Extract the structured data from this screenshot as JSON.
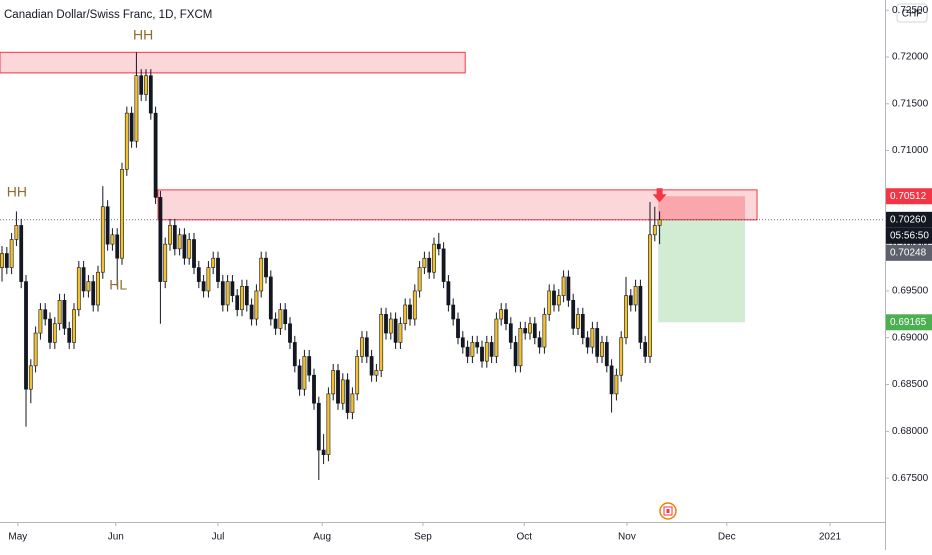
{
  "chart_data": {
    "type": "candlestick",
    "title": "Canadian Dollar/Swiss Franc, 1D, FXCM",
    "currency_button": "CHF",
    "up_color": "#f2c12e",
    "down_color": "#131722",
    "wick_color": "#131722",
    "xlim": [
      -0.42,
      183.96
    ],
    "ylim": [
      0.67031,
      0.72609
    ],
    "yticks": [
      {
        "value": 0.675,
        "label": "0.67500"
      },
      {
        "value": 0.68,
        "label": "0.68000"
      },
      {
        "value": 0.685,
        "label": "0.68500"
      },
      {
        "value": 0.69,
        "label": "0.69000"
      },
      {
        "value": 0.695,
        "label": "0.69500"
      },
      {
        "value": 0.7,
        "label": "0.70000"
      },
      {
        "value": 0.705,
        "label": "0.70500"
      },
      {
        "value": 0.71,
        "label": "0.71000"
      },
      {
        "value": 0.715,
        "label": "0.71500"
      },
      {
        "value": 0.72,
        "label": "0.72000"
      },
      {
        "value": 0.725,
        "label": "0.72500"
      }
    ],
    "xticks": [
      {
        "value": 3.3,
        "label": "May"
      },
      {
        "value": 23.7,
        "label": "Jun"
      },
      {
        "value": 45,
        "label": "Jul"
      },
      {
        "value": 66.7,
        "label": "Aug"
      },
      {
        "value": 87.7,
        "label": "Sep"
      },
      {
        "value": 108.8,
        "label": "Oct"
      },
      {
        "value": 130.2,
        "label": "Nov"
      },
      {
        "value": 151,
        "label": "Dec"
      },
      {
        "value": 172.5,
        "label": "2021"
      }
    ],
    "ohlc": [
      [
        0.6975,
        0.6998,
        0.696,
        0.699
      ],
      [
        0.699,
        0.6997,
        0.6968,
        0.6975
      ],
      [
        0.6975,
        0.7012,
        0.6968,
        0.7005
      ],
      [
        0.7005,
        0.7035,
        0.6998,
        0.702
      ],
      [
        0.702,
        0.7027,
        0.6953,
        0.696
      ],
      [
        0.696,
        0.6967,
        0.6805,
        0.6845
      ],
      [
        0.6845,
        0.6877,
        0.683,
        0.687
      ],
      [
        0.687,
        0.6912,
        0.6863,
        0.6905
      ],
      [
        0.6905,
        0.6937,
        0.6898,
        0.693
      ],
      [
        0.693,
        0.6937,
        0.6913,
        0.692
      ],
      [
        0.692,
        0.6927,
        0.6888,
        0.6895
      ],
      [
        0.6895,
        0.6922,
        0.6888,
        0.6915
      ],
      [
        0.6915,
        0.6947,
        0.6908,
        0.694
      ],
      [
        0.694,
        0.6947,
        0.6903,
        0.691
      ],
      [
        0.691,
        0.6917,
        0.6888,
        0.6895
      ],
      [
        0.6895,
        0.6937,
        0.6888,
        0.693
      ],
      [
        0.693,
        0.6982,
        0.6923,
        0.6975
      ],
      [
        0.6975,
        0.6982,
        0.6943,
        0.695
      ],
      [
        0.695,
        0.6967,
        0.6943,
        0.696
      ],
      [
        0.696,
        0.6967,
        0.6928,
        0.6935
      ],
      [
        0.6935,
        0.6977,
        0.6928,
        0.697
      ],
      [
        0.697,
        0.7062,
        0.6963,
        0.704
      ],
      [
        0.704,
        0.7047,
        0.6993,
        0.7
      ],
      [
        0.7,
        0.7017,
        0.6993,
        0.701
      ],
      [
        0.701,
        0.7017,
        0.6955,
        0.6985
      ],
      [
        0.6985,
        0.7087,
        0.6978,
        0.708
      ],
      [
        0.708,
        0.7147,
        0.7073,
        0.714
      ],
      [
        0.714,
        0.7147,
        0.7103,
        0.711
      ],
      [
        0.711,
        0.7205,
        0.7103,
        0.718
      ],
      [
        0.718,
        0.7187,
        0.7153,
        0.716
      ],
      [
        0.716,
        0.7187,
        0.7153,
        0.718
      ],
      [
        0.718,
        0.7187,
        0.7133,
        0.714
      ],
      [
        0.714,
        0.7147,
        0.7043,
        0.705
      ],
      [
        0.705,
        0.7057,
        0.6915,
        0.696
      ],
      [
        0.696,
        0.7007,
        0.6953,
        0.7
      ],
      [
        0.7,
        0.7027,
        0.6993,
        0.702
      ],
      [
        0.702,
        0.7027,
        0.6988,
        0.6995
      ],
      [
        0.6995,
        0.7017,
        0.6988,
        0.701
      ],
      [
        0.701,
        0.7017,
        0.6978,
        0.6985
      ],
      [
        0.6985,
        0.7012,
        0.6978,
        0.7005
      ],
      [
        0.7005,
        0.7012,
        0.6968,
        0.6975
      ],
      [
        0.6975,
        0.6982,
        0.6953,
        0.696
      ],
      [
        0.696,
        0.6967,
        0.6943,
        0.695
      ],
      [
        0.695,
        0.6982,
        0.6943,
        0.6975
      ],
      [
        0.6975,
        0.6992,
        0.6968,
        0.6985
      ],
      [
        0.6985,
        0.6992,
        0.6953,
        0.696
      ],
      [
        0.696,
        0.6967,
        0.6928,
        0.6935
      ],
      [
        0.6935,
        0.6967,
        0.6928,
        0.696
      ],
      [
        0.696,
        0.6967,
        0.6938,
        0.6945
      ],
      [
        0.6945,
        0.6952,
        0.6923,
        0.693
      ],
      [
        0.693,
        0.6962,
        0.6923,
        0.6955
      ],
      [
        0.6955,
        0.6962,
        0.6928,
        0.6935
      ],
      [
        0.6935,
        0.6942,
        0.6913,
        0.692
      ],
      [
        0.692,
        0.6957,
        0.6913,
        0.695
      ],
      [
        0.695,
        0.6992,
        0.6943,
        0.6985
      ],
      [
        0.6985,
        0.6992,
        0.6958,
        0.6965
      ],
      [
        0.6965,
        0.6972,
        0.6913,
        0.692
      ],
      [
        0.692,
        0.6927,
        0.6903,
        0.691
      ],
      [
        0.691,
        0.6937,
        0.6903,
        0.693
      ],
      [
        0.693,
        0.6937,
        0.6908,
        0.6915
      ],
      [
        0.6915,
        0.6922,
        0.6888,
        0.6895
      ],
      [
        0.6895,
        0.6902,
        0.6863,
        0.687
      ],
      [
        0.687,
        0.6877,
        0.6838,
        0.6845
      ],
      [
        0.6845,
        0.6887,
        0.6838,
        0.688
      ],
      [
        0.688,
        0.6887,
        0.6853,
        0.686
      ],
      [
        0.686,
        0.6867,
        0.6823,
        0.683
      ],
      [
        0.683,
        0.6837,
        0.6748,
        0.678
      ],
      [
        0.678,
        0.6797,
        0.6765,
        0.6775
      ],
      [
        0.6775,
        0.6847,
        0.6768,
        0.684
      ],
      [
        0.684,
        0.6872,
        0.6833,
        0.6865
      ],
      [
        0.6865,
        0.6872,
        0.6823,
        0.683
      ],
      [
        0.683,
        0.6862,
        0.6823,
        0.6855
      ],
      [
        0.6855,
        0.6862,
        0.6813,
        0.682
      ],
      [
        0.682,
        0.6847,
        0.6813,
        0.684
      ],
      [
        0.684,
        0.6887,
        0.6833,
        0.688
      ],
      [
        0.688,
        0.6907,
        0.6873,
        0.69
      ],
      [
        0.69,
        0.6907,
        0.6873,
        0.688
      ],
      [
        0.688,
        0.6887,
        0.6853,
        0.686
      ],
      [
        0.686,
        0.6872,
        0.6853,
        0.6865
      ],
      [
        0.6865,
        0.6932,
        0.6858,
        0.6925
      ],
      [
        0.6925,
        0.6932,
        0.6898,
        0.6905
      ],
      [
        0.6905,
        0.6927,
        0.6898,
        0.692
      ],
      [
        0.692,
        0.6927,
        0.6888,
        0.6895
      ],
      [
        0.6895,
        0.6922,
        0.6888,
        0.6915
      ],
      [
        0.6915,
        0.6942,
        0.6908,
        0.6935
      ],
      [
        0.6935,
        0.6942,
        0.6913,
        0.692
      ],
      [
        0.692,
        0.6957,
        0.6913,
        0.695
      ],
      [
        0.695,
        0.6982,
        0.6943,
        0.6975
      ],
      [
        0.6975,
        0.6992,
        0.6968,
        0.6985
      ],
      [
        0.6985,
        0.6992,
        0.6963,
        0.697
      ],
      [
        0.697,
        0.7007,
        0.6963,
        0.7
      ],
      [
        0.7,
        0.7012,
        0.6988,
        0.6995
      ],
      [
        0.6995,
        0.7002,
        0.6953,
        0.696
      ],
      [
        0.696,
        0.6967,
        0.6928,
        0.6935
      ],
      [
        0.6935,
        0.6942,
        0.6913,
        0.692
      ],
      [
        0.692,
        0.6927,
        0.6893,
        0.69
      ],
      [
        0.69,
        0.6907,
        0.6883,
        0.689
      ],
      [
        0.689,
        0.6897,
        0.6873,
        0.688
      ],
      [
        0.688,
        0.6902,
        0.6873,
        0.6895
      ],
      [
        0.6895,
        0.6902,
        0.6883,
        0.689
      ],
      [
        0.689,
        0.6897,
        0.6868,
        0.6875
      ],
      [
        0.6875,
        0.6902,
        0.6868,
        0.6895
      ],
      [
        0.6895,
        0.6902,
        0.6873,
        0.688
      ],
      [
        0.688,
        0.6927,
        0.6873,
        0.692
      ],
      [
        0.692,
        0.6937,
        0.6913,
        0.693
      ],
      [
        0.693,
        0.6937,
        0.6908,
        0.6915
      ],
      [
        0.6915,
        0.6922,
        0.6888,
        0.6895
      ],
      [
        0.6895,
        0.6902,
        0.6863,
        0.687
      ],
      [
        0.687,
        0.6917,
        0.6863,
        0.691
      ],
      [
        0.691,
        0.6917,
        0.6898,
        0.6905
      ],
      [
        0.6905,
        0.6922,
        0.6898,
        0.6915
      ],
      [
        0.6915,
        0.6922,
        0.6893,
        0.69
      ],
      [
        0.69,
        0.6907,
        0.6883,
        0.689
      ],
      [
        0.689,
        0.6932,
        0.6883,
        0.6925
      ],
      [
        0.6925,
        0.6957,
        0.6918,
        0.695
      ],
      [
        0.695,
        0.6957,
        0.6928,
        0.6935
      ],
      [
        0.6935,
        0.6952,
        0.6928,
        0.6945
      ],
      [
        0.6945,
        0.6972,
        0.6938,
        0.6965
      ],
      [
        0.6965,
        0.6972,
        0.6933,
        0.694
      ],
      [
        0.694,
        0.6947,
        0.6903,
        0.691
      ],
      [
        0.691,
        0.6932,
        0.6903,
        0.6925
      ],
      [
        0.6925,
        0.6932,
        0.6893,
        0.69
      ],
      [
        0.69,
        0.6907,
        0.6883,
        0.689
      ],
      [
        0.689,
        0.6917,
        0.6883,
        0.691
      ],
      [
        0.691,
        0.6917,
        0.6873,
        0.688
      ],
      [
        0.688,
        0.6902,
        0.6873,
        0.6895
      ],
      [
        0.6895,
        0.6902,
        0.6863,
        0.687
      ],
      [
        0.687,
        0.6877,
        0.682,
        0.684
      ],
      [
        0.684,
        0.6867,
        0.6833,
        0.686
      ],
      [
        0.686,
        0.6907,
        0.6853,
        0.69
      ],
      [
        0.69,
        0.6965,
        0.6893,
        0.6945
      ],
      [
        0.6945,
        0.6952,
        0.6928,
        0.6935
      ],
      [
        0.6935,
        0.6962,
        0.6928,
        0.6955
      ],
      [
        0.6955,
        0.6962,
        0.6888,
        0.6895
      ],
      [
        0.6895,
        0.6902,
        0.6873,
        0.688
      ],
      [
        0.688,
        0.7045,
        0.6873,
        0.701
      ],
      [
        0.701,
        0.704,
        0.7003,
        0.702
      ],
      [
        0.702,
        0.7035,
        0.7,
        0.7026
      ]
    ],
    "zones": [
      {
        "x0": -0.42,
        "x1": 96.5,
        "y0": 0.7183,
        "y1": 0.7205
      },
      {
        "x0": 32.5,
        "x1": 157.3,
        "y0": 0.7026,
        "y1": 0.7058
      }
    ],
    "position": {
      "x0": 136.7,
      "x1": 154.8,
      "entry": 0.7026,
      "stop": 0.70512,
      "target": 0.69165
    },
    "annotations": [
      {
        "text": "HH",
        "x": 29.4,
        "y": 0.72224
      },
      {
        "text": "HH",
        "x": 3.1,
        "y": 0.70547
      },
      {
        "text": "HL",
        "x": 24.2,
        "y": 0.69553
      }
    ],
    "price_labels": [
      {
        "value": 0.70512,
        "label": "0.70512",
        "color": "#f23645"
      },
      {
        "value": 0.7026,
        "label": "0.70260",
        "color": "#131722"
      },
      {
        "value": 0.69165,
        "label": "0.69165",
        "color": "#4caf50"
      }
    ],
    "countdown": "05:56:50",
    "bid_label": {
      "value": 0.70248,
      "label": "0.70248",
      "color": "#5d606b"
    }
  }
}
